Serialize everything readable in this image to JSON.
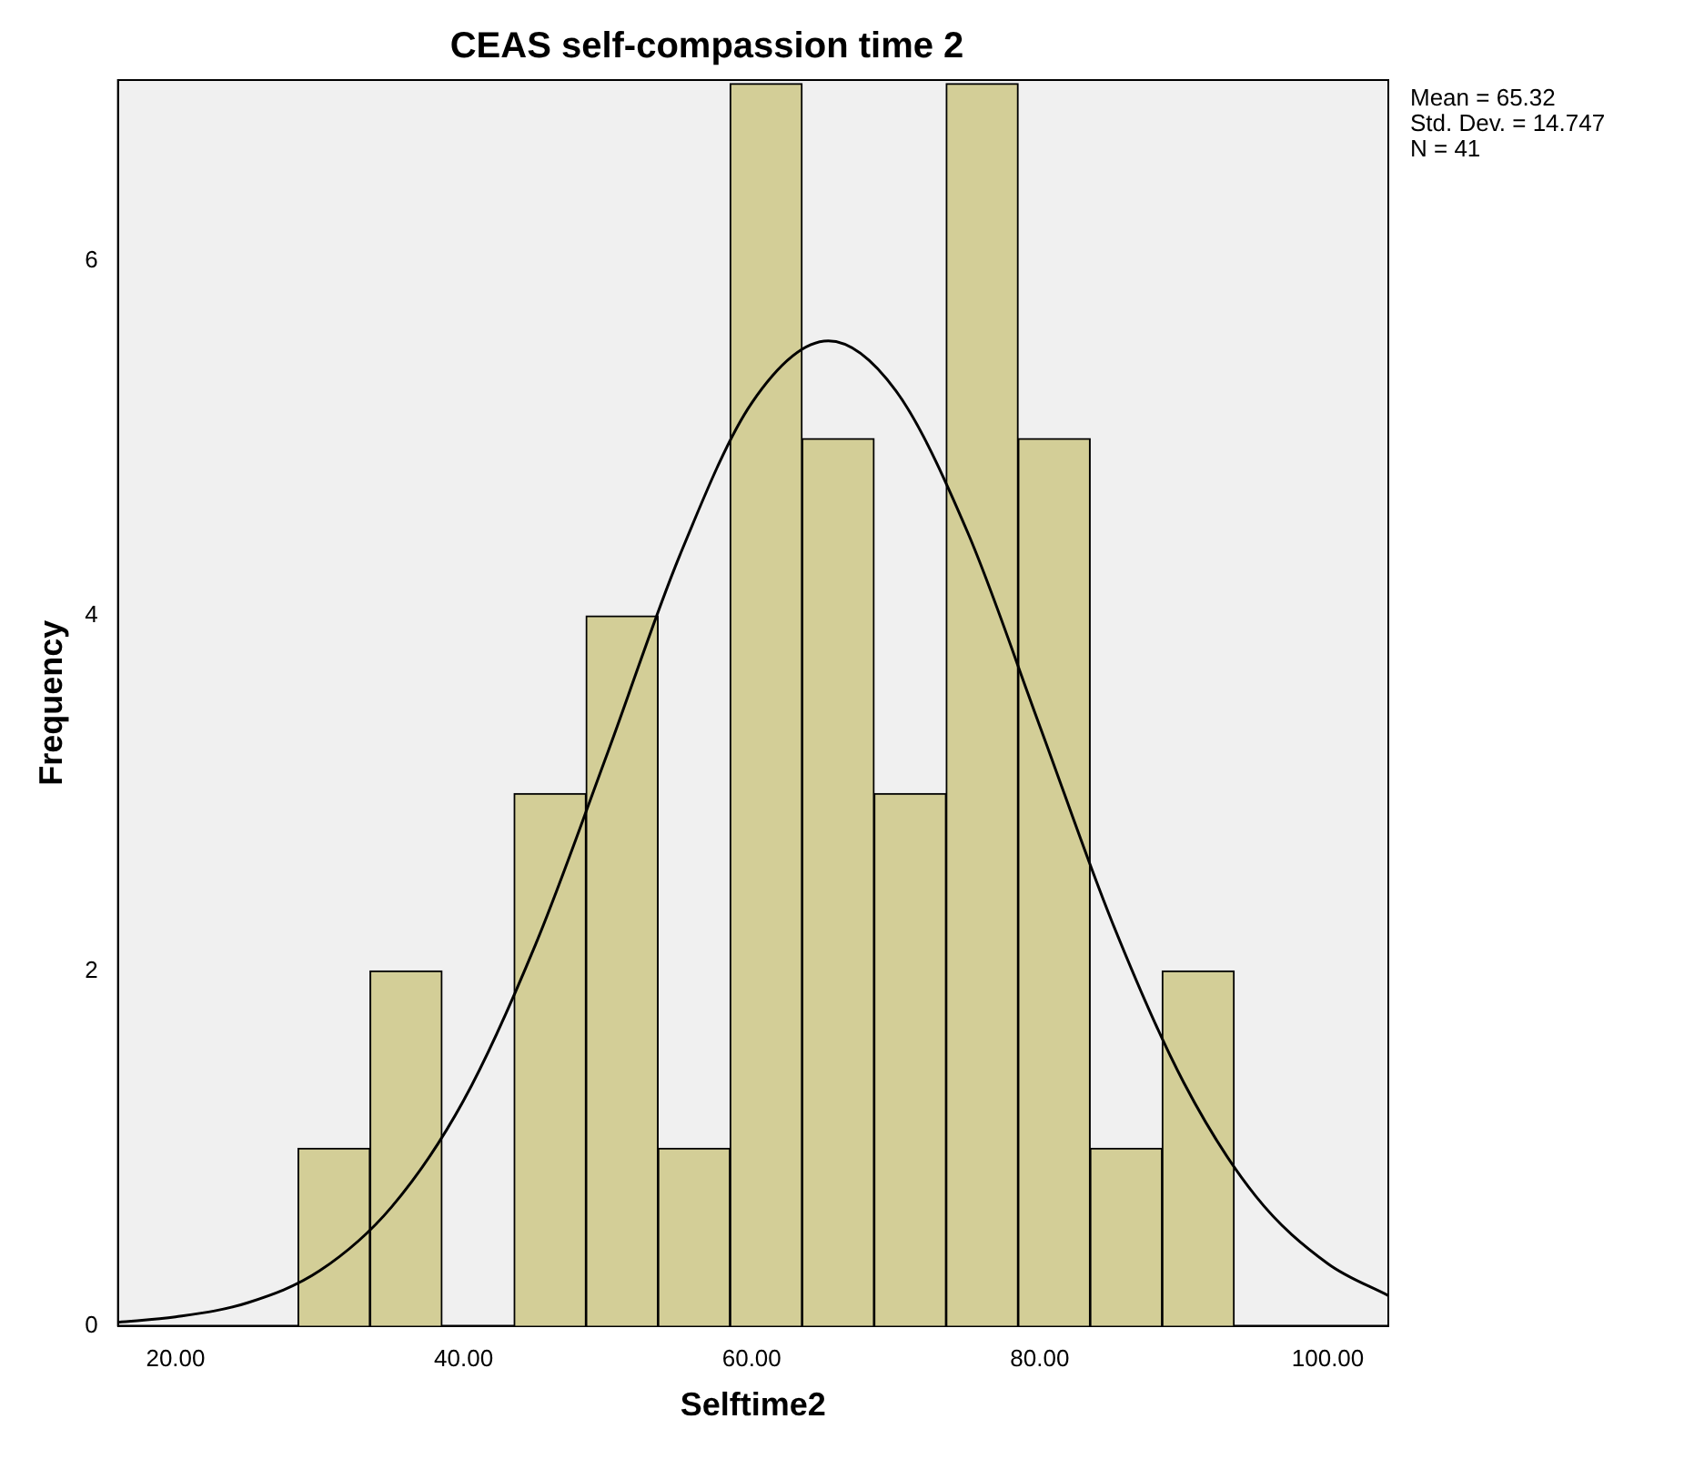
{
  "chart_data": {
    "type": "histogram",
    "title": "CEAS self-compassion time 2",
    "xlabel": "Selftime2",
    "ylabel": "Frequency",
    "bins": [
      28.5,
      33.5,
      38.5,
      43.5,
      48.5,
      53.5,
      58.5,
      63.5,
      68.5,
      73.5,
      78.5,
      83.5,
      88.5,
      93.5
    ],
    "values": [
      1,
      2,
      0,
      3,
      4,
      1,
      7,
      5,
      3,
      7,
      5,
      1,
      2
    ],
    "color": "#d3ce97",
    "series": [
      {
        "type": "line",
        "color": "#000000",
        "x": [
          16,
          20,
          25,
          30,
          35,
          40,
          45,
          50,
          55,
          60,
          65.32,
          70,
          75,
          80,
          85,
          90,
          95,
          100,
          104.2
        ],
        "values": [
          0.02,
          0.05,
          0.13,
          0.31,
          0.67,
          1.27,
          2.15,
          3.23,
          4.34,
          5.2,
          5.55,
          5.27,
          4.47,
          3.38,
          2.28,
          1.37,
          0.73,
          0.35,
          0.17
        ]
      }
    ],
    "xlim": [
      16,
      104.2
    ],
    "xticks": [
      {
        "value": 20,
        "label": "20.00"
      },
      {
        "value": 40,
        "label": "40.00"
      },
      {
        "value": 60,
        "label": "60.00"
      },
      {
        "value": 80,
        "label": "80.00"
      },
      {
        "value": 100,
        "label": "100.00"
      }
    ],
    "ylim": [
      0,
      7.02
    ],
    "yticks": [
      0,
      2,
      4,
      6
    ],
    "grid": false,
    "legend": false,
    "marker": "none",
    "annotations": [
      "Mean = 65.32",
      "Std. Dev. = 14.747",
      "N = 41"
    ]
  }
}
